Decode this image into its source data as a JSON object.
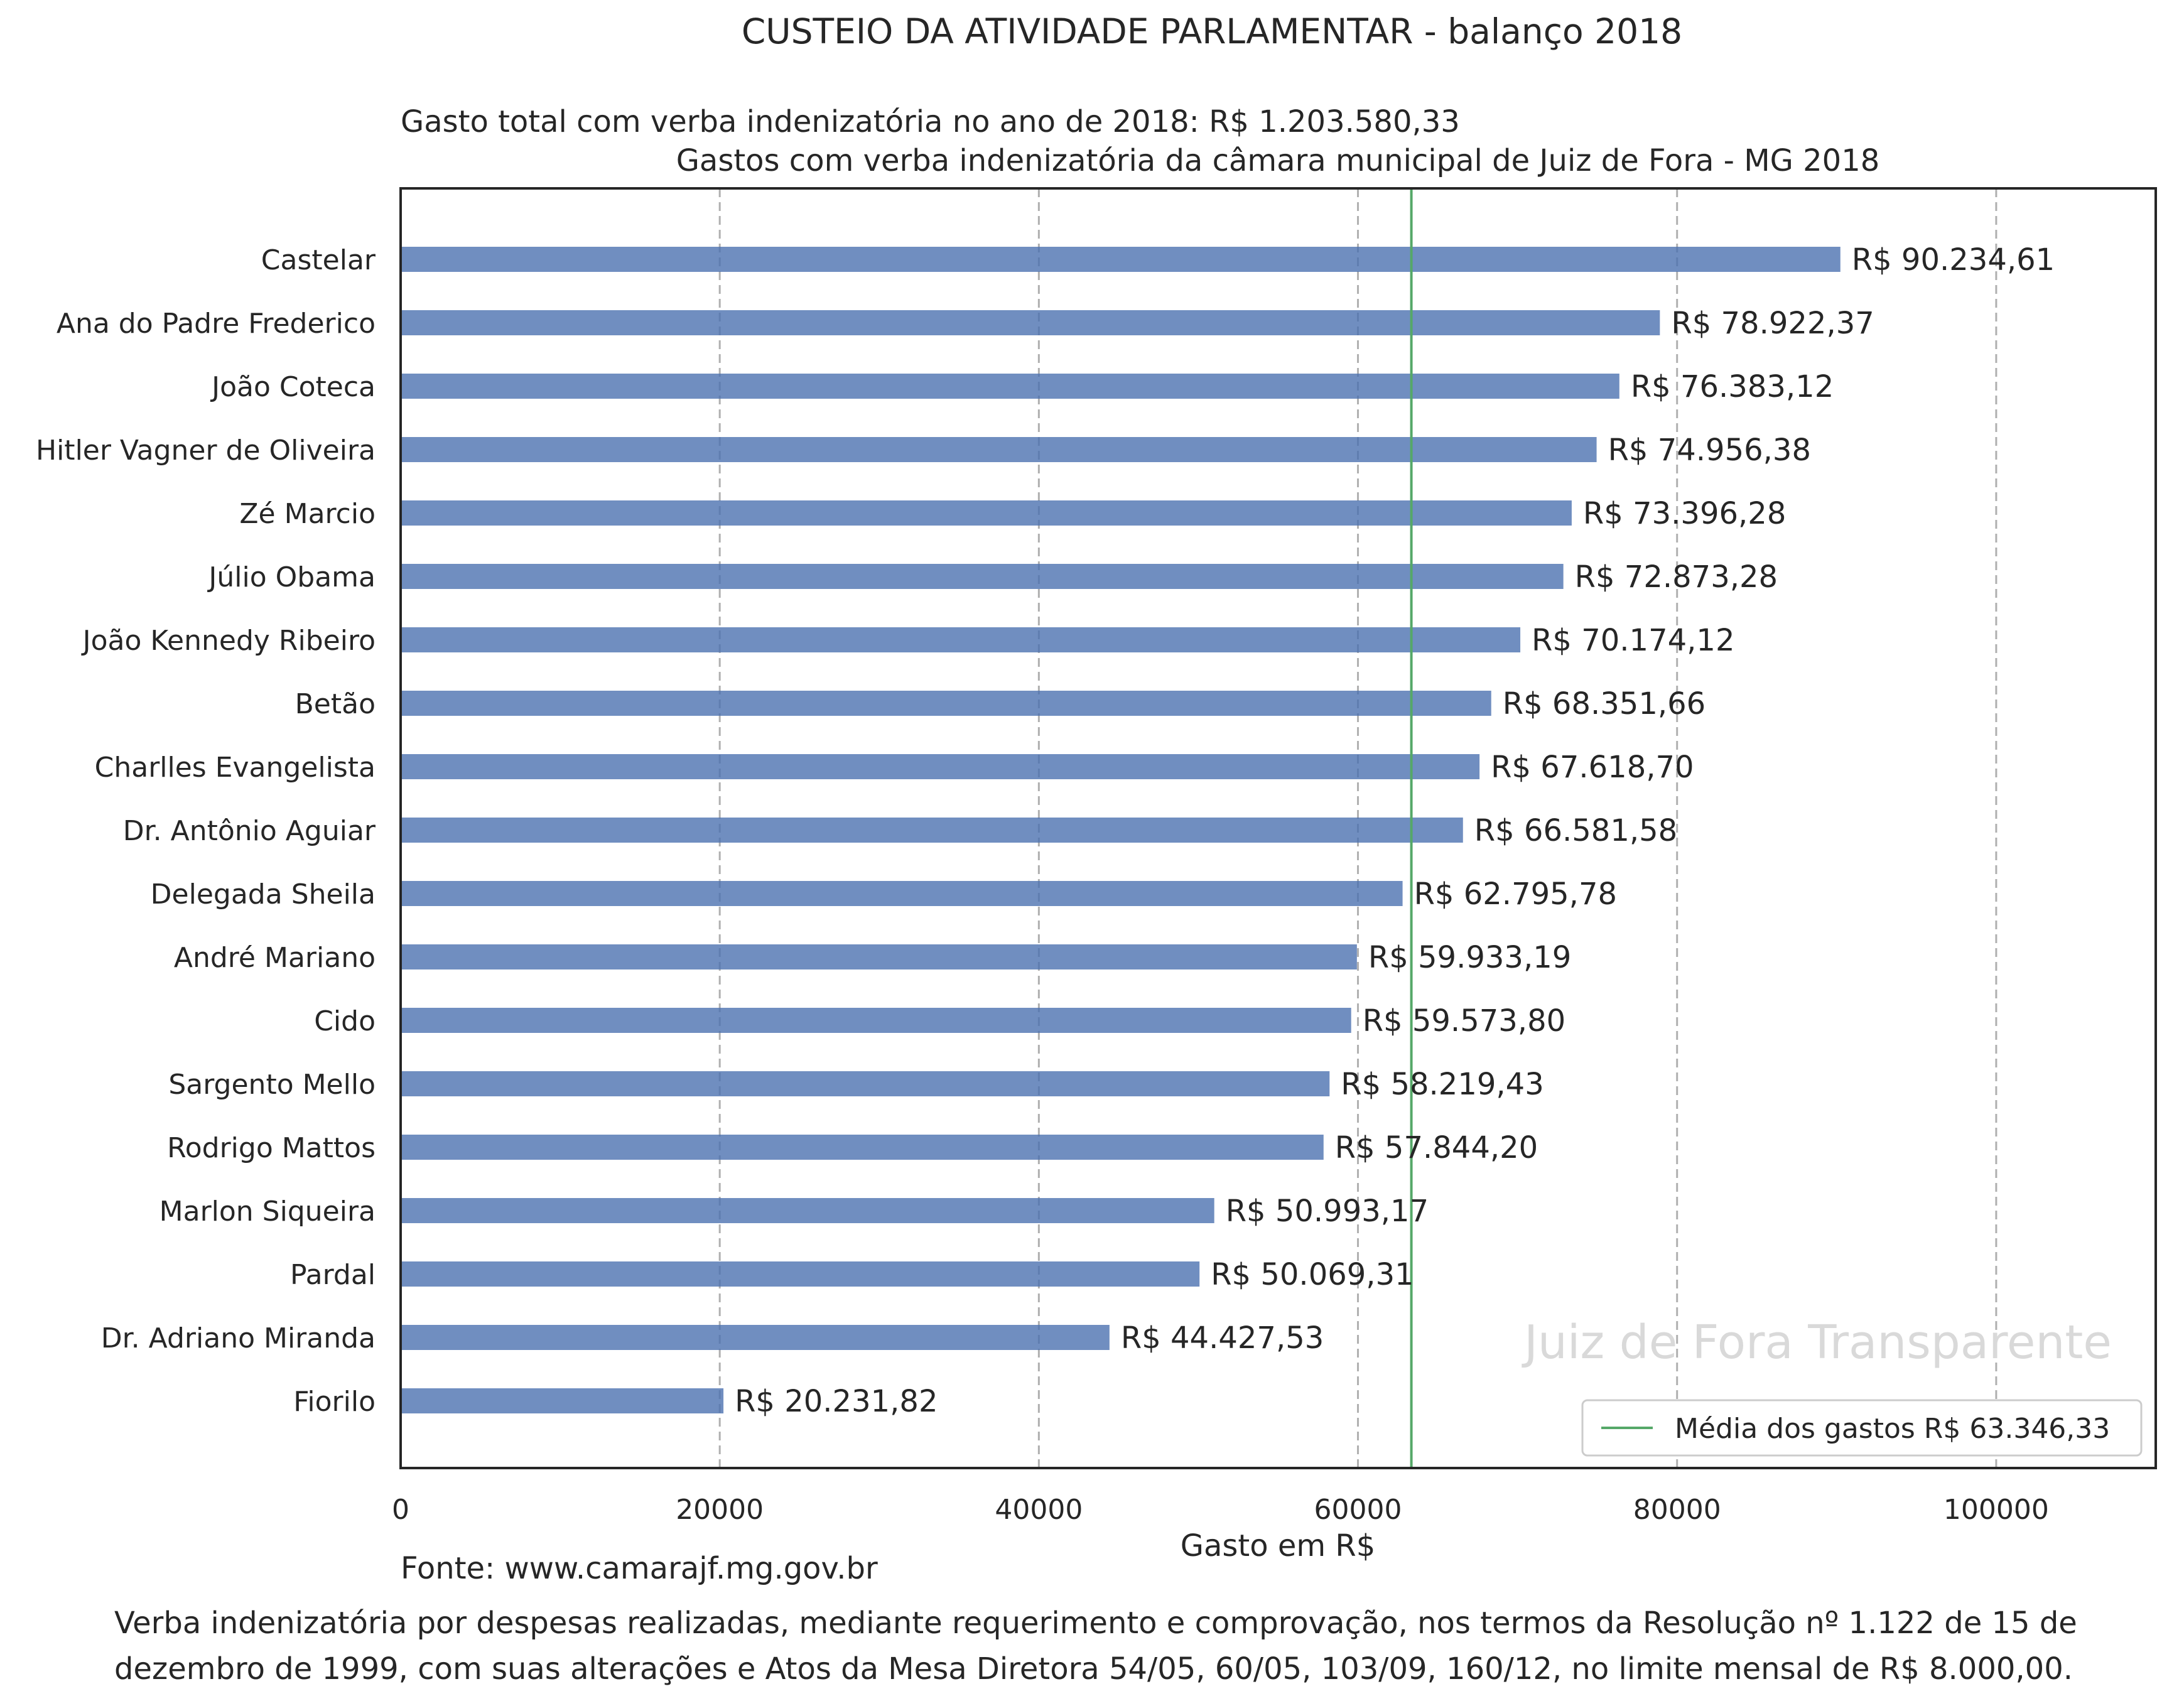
{
  "header": {
    "title": "CUSTEIO DA ATIVIDADE PARLAMENTAR - balanço 2018",
    "total_text": "Gasto total com verba indenizatória no ano de 2018: R$ 1.203.580,33"
  },
  "footer": {
    "source": "Fonte: www.camarajf.mg.gov.br",
    "note_line1": "Verba indenizatória por despesas realizadas, mediante requerimento e comprovação, nos termos da Resolução nº 1.122 de 15 de",
    "note_line2": "dezembro de 1999, com suas alterações e Atos da Mesa Diretora 54/05, 60/05, 103/09, 160/12, no limite mensal de R$ 8.000,00."
  },
  "watermark": "Juiz de Fora Transparente",
  "colors": {
    "bar": "#4c72b0",
    "mean_line": "#55a868",
    "grid": "#b0b0b0",
    "watermark": "#d9d9d9"
  },
  "chart_data": {
    "type": "bar",
    "orientation": "horizontal",
    "title": "Gastos com verba indenizatória da câmara municipal de Juiz de Fora - MG 2018",
    "xlabel": "Gasto em R$",
    "ylabel": "",
    "xlim": [
      0,
      110000
    ],
    "xticks": [
      0,
      20000,
      40000,
      60000,
      80000,
      100000
    ],
    "grid": "vertical dashed",
    "legend_position": "bottom-right",
    "categories": [
      "Castelar",
      "Ana do Padre Frederico",
      "João Coteca",
      "Hitler Vagner de Oliveira",
      "Zé Marcio",
      "Júlio Obama",
      "João Kennedy Ribeiro",
      "Betão",
      "Charlles Evangelista",
      "Dr. Antônio Aguiar",
      "Delegada Sheila",
      "André Mariano",
      "Cido",
      "Sargento Mello",
      "Rodrigo Mattos",
      "Marlon Siqueira",
      "Pardal",
      "Dr. Adriano Miranda",
      "Fiorilo"
    ],
    "values": [
      90234.61,
      78922.37,
      76383.12,
      74956.38,
      73396.28,
      72873.28,
      70174.12,
      68351.66,
      67618.7,
      66581.58,
      62795.78,
      59933.19,
      59573.8,
      58219.43,
      57844.2,
      50993.17,
      50069.31,
      44427.53,
      20231.82
    ],
    "value_labels": [
      "R$ 90.234,61",
      "R$ 78.922,37",
      "R$ 76.383,12",
      "R$ 74.956,38",
      "R$ 73.396,28",
      "R$ 72.873,28",
      "R$ 70.174,12",
      "R$ 68.351,66",
      "R$ 67.618,70",
      "R$ 66.581,58",
      "R$ 62.795,78",
      "R$ 59.933,19",
      "R$ 59.573,80",
      "R$ 58.219,43",
      "R$ 57.844,20",
      "R$ 50.993,17",
      "R$ 50.069,31",
      "R$ 44.427,53",
      "R$ 20.231,82"
    ],
    "mean": 63346.33,
    "mean_label": "Média dos gastos R$ 63.346,33"
  }
}
